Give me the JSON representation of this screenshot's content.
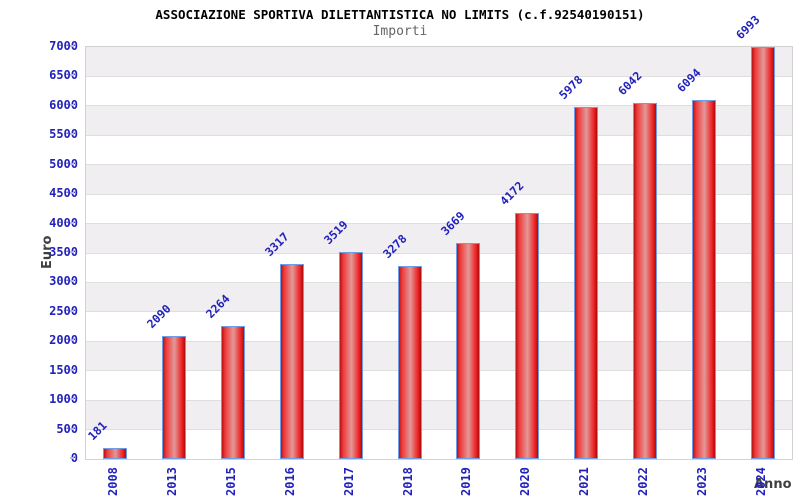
{
  "chart_data": {
    "type": "bar",
    "title": "ASSOCIAZIONE SPORTIVA DILETTANTISTICA NO LIMITS (c.f.92540190151)",
    "subtitle": "Importi",
    "xlabel": "Anno",
    "ylabel": "Euro",
    "categories": [
      "2008",
      "2013",
      "2015",
      "2016",
      "2017",
      "2018",
      "2019",
      "2020",
      "2021",
      "2022",
      "2023",
      "2024"
    ],
    "values": [
      181,
      2090,
      2264,
      3317,
      3519,
      3278,
      3669,
      4172,
      5978,
      6042,
      6094,
      6993
    ],
    "ylim": [
      0,
      7000
    ],
    "ytick_step": 500,
    "yticks": [
      0,
      500,
      1000,
      1500,
      2000,
      2500,
      3000,
      3500,
      4000,
      4500,
      5000,
      5500,
      6000,
      6500,
      7000
    ],
    "grid": "alternating horizontal bands, gray band at top, horizontal gridlines every 500",
    "legend_position": "none",
    "colors": {
      "bar_fill": "#e01414",
      "bar_fill_highlight": "#e39898",
      "bar_border": "#6e9de6",
      "tick_label": "#2222bb",
      "value_label": "#2222bb",
      "band": "#f0eef1",
      "gridline": "#dedede",
      "axis_title": "#3f3f3f",
      "title": "#000000",
      "subtitle": "#666666",
      "background": "#ffffff"
    }
  }
}
